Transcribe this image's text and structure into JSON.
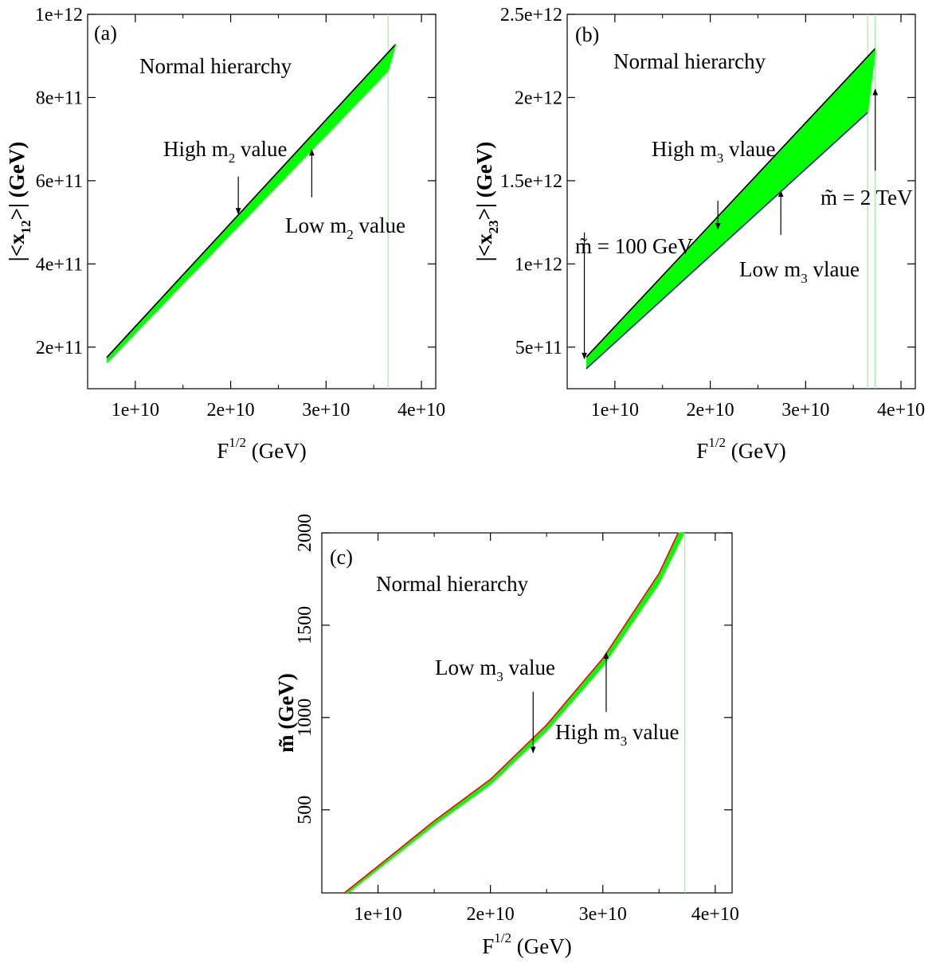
{
  "chart_data": [
    {
      "id": "a",
      "type": "area",
      "panel_label": "(a)",
      "title": "Normal hierarchy",
      "xlabel": {
        "main": "F",
        "sup": "1/2",
        "rest": " (GeV)"
      },
      "ylabel": {
        "pre": "|<x",
        "sub": "12",
        "post": ">| (GeV)"
      },
      "xlim": [
        5000000000,
        41500000000
      ],
      "ylim": [
        100000000000,
        1000000000000
      ],
      "xticks": [
        10000000000,
        20000000000,
        30000000000,
        40000000000
      ],
      "xtick_labels": [
        "1e+10",
        "2e+10",
        "3e+10",
        "4e+10"
      ],
      "yticks": [
        200000000000,
        400000000000,
        600000000000,
        800000000000,
        1000000000000
      ],
      "ytick_labels": [
        "2e+11",
        "4e+11",
        "6e+11",
        "8e+11",
        "1e+12"
      ],
      "band": {
        "upper": {
          "x": [
            7000000000,
            37300000000
          ],
          "y": [
            175000000000,
            928000000000
          ],
          "color": "#000000"
        },
        "lower": {
          "x": [
            7000000000,
            36500000000
          ],
          "y": [
            163000000000,
            865000000000
          ],
          "color": "#00ff00"
        },
        "fill": "#00ff00"
      },
      "vlines": [
        {
          "x": 36500000000,
          "color": "#90e890"
        }
      ],
      "annotations": [
        {
          "id": "high",
          "main": "High m",
          "sub": "2",
          "rest": " value",
          "text_x": 6500000000,
          "text_y": 870000000000,
          "arrow_from": [
            20800000000,
            610000000000
          ],
          "arrow_to": [
            20800000000,
            520000000000
          ]
        },
        {
          "id": "low",
          "main": "Low m",
          "sub": "2",
          "rest": " value",
          "text_x": 9500000000,
          "text_y": 495000000000,
          "arrow_from": [
            28500000000,
            560000000000
          ],
          "arrow_to": [
            28500000000,
            675000000000
          ]
        }
      ]
    },
    {
      "id": "b",
      "type": "area",
      "panel_label": "(b)",
      "title": "Normal hierarchy",
      "xlabel": {
        "main": "F",
        "sup": "1/2",
        "rest": " (GeV)"
      },
      "ylabel": {
        "pre": "|<x",
        "sub": "23",
        "post": ">| (GeV)"
      },
      "xlim": [
        5000000000,
        41500000000
      ],
      "ylim": [
        250000000000,
        2500000000000
      ],
      "xticks": [
        10000000000,
        20000000000,
        30000000000,
        40000000000
      ],
      "xtick_labels": [
        "1e+10",
        "2e+10",
        "3e+10",
        "4e+10"
      ],
      "yticks": [
        500000000000,
        1000000000000,
        1500000000000,
        2000000000000,
        2500000000000
      ],
      "ytick_labels": [
        "5e+11",
        "1e+12",
        "1.5e+12",
        "2e+12",
        "2.5e+12"
      ],
      "band": {
        "upper": {
          "x": [
            7000000000,
            37300000000
          ],
          "y": [
            440000000000,
            2295000000000
          ],
          "color": "#000000"
        },
        "lower": {
          "x": [
            7000000000,
            36500000000
          ],
          "y": [
            370000000000,
            1910000000000
          ],
          "color": "#0000cc"
        },
        "fill": "#00ff00"
      },
      "vlines": [
        {
          "x": 36500000000,
          "color": "#90e890"
        },
        {
          "x": 37300000000,
          "color": "#90e890"
        }
      ],
      "annotations": [
        {
          "id": "high",
          "main": "High m",
          "sub": "3",
          "rest": " vlaue",
          "text_x": 10000000000,
          "text_y": 2060000000000,
          "arrow_from": [
            20800000000,
            1380000000000
          ],
          "arrow_to": [
            20800000000,
            1210000000000
          ]
        },
        {
          "id": "low",
          "main": "Low m",
          "sub": "3",
          "rest": " vlaue",
          "text_x": 7500000000,
          "text_y": 1140000000000,
          "arrow_from": [
            27400000000,
            1175000000000
          ],
          "arrow_to": [
            27400000000,
            1440000000000
          ]
        },
        {
          "id": "mtilde100",
          "main": "m̃ = 100 GeV",
          "sub": "",
          "rest": "",
          "text_x": 6900000000,
          "text_y": 1470000000000,
          "arrow_from": [
            6800000000,
            1190000000000
          ],
          "arrow_to": [
            6800000000,
            430000000000
          ]
        },
        {
          "id": "mtilde2tev",
          "main": "m̃ = 2 TeV",
          "sub": "",
          "rest": "",
          "text_x": 4900000000,
          "text_y": 1350000000000,
          "arrow_from": [
            37300000000,
            1560000000000
          ],
          "arrow_to": [
            37300000000,
            2050000000000
          ]
        }
      ]
    },
    {
      "id": "c",
      "type": "area",
      "panel_label": "(c)",
      "title": "Normal hierarchy",
      "xlabel": {
        "main": "F",
        "sup": "1/2",
        "rest": " (GeV)"
      },
      "ylabel": {
        "pre": "m̃ (GeV)",
        "sub": "",
        "post": ""
      },
      "xlim": [
        5000000000,
        41500000000
      ],
      "ylim": [
        50,
        2000
      ],
      "xticks": [
        10000000000,
        20000000000,
        30000000000,
        40000000000
      ],
      "xtick_labels": [
        "1e+10",
        "2e+10",
        "3e+10",
        "4e+10"
      ],
      "yticks": [
        500,
        1000,
        1500,
        2000
      ],
      "ytick_labels": [
        "500",
        "1000",
        "1500",
        "2000"
      ],
      "band": {
        "upper": {
          "x": [
            7000000000,
            10000000000,
            15000000000,
            20000000000,
            25000000000,
            30000000000,
            35000000000,
            36700000000
          ],
          "y": [
            50,
            195,
            440,
            665,
            960,
            1320,
            1780,
            2000
          ],
          "color": "#ff0000"
        },
        "lower": {
          "x": [
            7300000000,
            10000000000,
            15000000000,
            20000000000,
            25000000000,
            30000000000,
            35000000000,
            37200000000
          ],
          "y": [
            50,
            180,
            420,
            640,
            930,
            1280,
            1730,
            2000
          ],
          "color": "#00ff00"
        },
        "fill": "#00ff00"
      },
      "vlines": [
        {
          "x": 37300000000,
          "color": "#90e890"
        }
      ],
      "annotations": [
        {
          "id": "low",
          "main": "Low m",
          "sub": "3",
          "rest": " value",
          "text_x": 14800000000,
          "text_y": 1270000000000,
          "arrow_from": [
            23800000000,
            1140
          ],
          "arrow_to": [
            23800000000,
            810
          ]
        },
        {
          "id": "high",
          "main": "High m",
          "sub": "3",
          "rest": " value",
          "text_x": 22000000000,
          "text_y": 0,
          "arrow_from": [
            30300000000,
            1030
          ],
          "arrow_to": [
            30300000000,
            1350
          ]
        }
      ]
    }
  ]
}
